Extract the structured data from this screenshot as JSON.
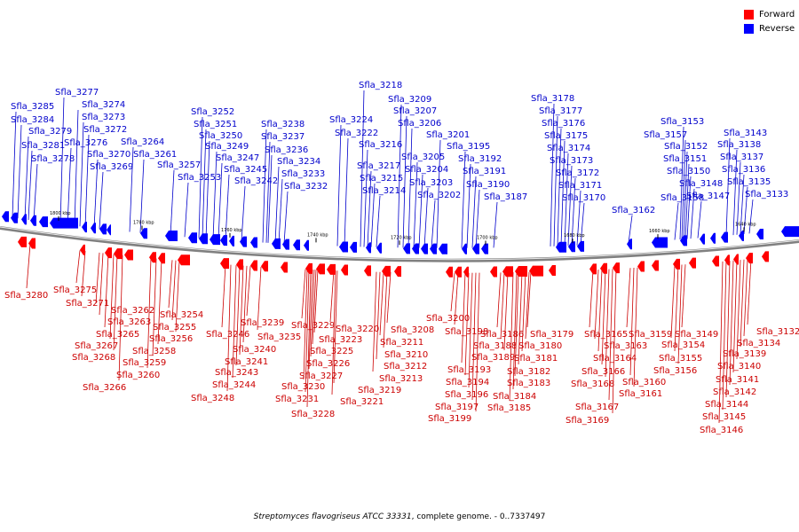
{
  "legend": {
    "forward_label": "Forward",
    "reverse_label": "Reverse",
    "forward_color": "#ff0000",
    "reverse_color": "#0000ff"
  },
  "caption": {
    "organism": "Streptomyces flavogriseus ATCC 33331",
    "rest": ", complete genome. - 0..7337497"
  },
  "map": {
    "backbone_color": "#808080",
    "label_colors": {
      "forward": "#cc0000",
      "reverse": "#0000cc"
    },
    "kbp_ticks": [
      "1800 kbp",
      "1780 kbp",
      "1760 kbp",
      "1740 kbp",
      "1720 kbp",
      "1700 kbp",
      "1680 kbp",
      "1660 kbp",
      "1640 kbp"
    ],
    "reverse_genes": [
      "Sfla_3285",
      "Sfla_3284",
      "Sfla_3279",
      "Sfla_3281",
      "Sfla_3278",
      "Sfla_3277",
      "Sfla_3276",
      "Sfla_3274",
      "Sfla_3273",
      "Sfla_3272",
      "Sfla_3270",
      "Sfla_3269",
      "Sfla_3264",
      "Sfla_3261",
      "Sfla_3257",
      "Sfla_3253",
      "Sfla_3252",
      "Sfla_3251",
      "Sfla_3250",
      "Sfla_3249",
      "Sfla_3247",
      "Sfla_3245",
      "Sfla_3242",
      "Sfla_3238",
      "Sfla_3237",
      "Sfla_3236",
      "Sfla_3234",
      "Sfla_3233",
      "Sfla_3232",
      "Sfla_3224",
      "Sfla_3222",
      "Sfla_3218",
      "Sfla_3216",
      "Sfla_3217",
      "Sfla_3215",
      "Sfla_3214",
      "Sfla_3209",
      "Sfla_3207",
      "Sfla_3206",
      "Sfla_3205",
      "Sfla_3204",
      "Sfla_3203",
      "Sfla_3202",
      "Sfla_3201",
      "Sfla_3195",
      "Sfla_3192",
      "Sfla_3191",
      "Sfla_3190",
      "Sfla_3187",
      "Sfla_3178",
      "Sfla_3177",
      "Sfla_3176",
      "Sfla_3175",
      "Sfla_3174",
      "Sfla_3173",
      "Sfla_3172",
      "Sfla_3171",
      "Sfla_3170",
      "Sfla_3162",
      "Sfla_3158",
      "Sfla_3153",
      "Sfla_3157",
      "Sfla_3152",
      "Sfla_3151",
      "Sfla_3150",
      "Sfla_3148",
      "Sfla_3147",
      "Sfla_3143",
      "Sfla_3138",
      "Sfla_3137",
      "Sfla_3136",
      "Sfla_3135",
      "Sfla_3133"
    ],
    "forward_genes": [
      "Sfla_3280",
      "Sfla_3275",
      "Sfla_3271",
      "Sfla_3262",
      "Sfla_3263",
      "Sfla_3265",
      "Sfla_3267",
      "Sfla_3268",
      "Sfla_3266",
      "Sfla_3254",
      "Sfla_3255",
      "Sfla_3256",
      "Sfla_3258",
      "Sfla_3259",
      "Sfla_3260",
      "Sfla_3246",
      "Sfla_3248",
      "Sfla_3244",
      "Sfla_3243",
      "Sfla_3241",
      "Sfla_3240",
      "Sfla_3239",
      "Sfla_3235",
      "Sfla_3229",
      "Sfla_3230",
      "Sfla_3231",
      "Sfla_3228",
      "Sfla_3227",
      "Sfla_3226",
      "Sfla_3225",
      "Sfla_3223",
      "Sfla_3220",
      "Sfla_3221",
      "Sfla_3219",
      "Sfla_3213",
      "Sfla_3212",
      "Sfla_3211",
      "Sfla_3210",
      "Sfla_3208",
      "Sfla_3200",
      "Sfla_3198",
      "Sfla_3193",
      "Sfla_3194",
      "Sfla_3196",
      "Sfla_3197",
      "Sfla_3199",
      "Sfla_3186",
      "Sfla_3188",
      "Sfla_3189",
      "Sfla_3185",
      "Sfla_3184",
      "Sfla_3183",
      "Sfla_3182",
      "Sfla_3181",
      "Sfla_3180",
      "Sfla_3179",
      "Sfla_3165",
      "Sfla_3163",
      "Sfla_3164",
      "Sfla_3166",
      "Sfla_3168",
      "Sfla_3167",
      "Sfla_3169",
      "Sfla_3159",
      "Sfla_3160",
      "Sfla_3161",
      "Sfla_3154",
      "Sfla_3155",
      "Sfla_3156",
      "Sfla_3149",
      "Sfla_3132",
      "Sfla_3134",
      "Sfla_3139",
      "Sfla_3140",
      "Sfla_3141",
      "Sfla_3142",
      "Sfla_3144",
      "Sfla_3145",
      "Sfla_3146"
    ]
  }
}
